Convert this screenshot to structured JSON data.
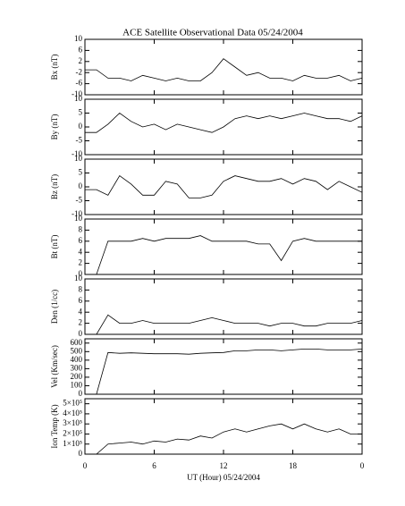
{
  "chart_data": [
    {
      "type": "line",
      "title": "ACE Satellite Observational Data   05/24/2004",
      "ylabel": "Bx (nT)",
      "ylim": [
        -10,
        10
      ],
      "yticks": [
        -10,
        -6,
        -2,
        2,
        6,
        10
      ],
      "color": "#000000",
      "values": [
        -1,
        -1,
        -4,
        -4,
        -5,
        -3,
        -4,
        -5,
        -4,
        -5,
        -5,
        -2,
        3,
        0,
        -3,
        -2,
        -4,
        -4,
        -5,
        -3,
        -4,
        -4,
        -3,
        -5,
        -4
      ]
    },
    {
      "type": "line",
      "ylabel": "By (nT)",
      "ylim": [
        -10,
        10
      ],
      "yticks": [
        -10,
        -5,
        0,
        5,
        10
      ],
      "color": "#000000",
      "values": [
        -2,
        -2,
        1,
        5,
        2,
        0,
        1,
        -1,
        1,
        0,
        -1,
        -2,
        0,
        3,
        4,
        3,
        4,
        3,
        4,
        5,
        4,
        3,
        3,
        2,
        4
      ]
    },
    {
      "type": "line",
      "ylabel": "Bz (nT)",
      "ylim": [
        -10,
        10
      ],
      "yticks": [
        -10,
        -5,
        0,
        5,
        10
      ],
      "color": "#000000",
      "values": [
        -1,
        -1,
        -3,
        4,
        1,
        -3,
        -3,
        2,
        1,
        -4,
        -4,
        -3,
        2,
        4,
        3,
        2,
        2,
        3,
        1,
        3,
        2,
        -1,
        2,
        0,
        -2
      ]
    },
    {
      "type": "line",
      "ylabel": "Bt (nT)",
      "ylim": [
        0,
        10
      ],
      "yticks": [
        0,
        2,
        4,
        6,
        8,
        10
      ],
      "color": "#000000",
      "values": [
        0,
        0,
        6,
        6,
        6,
        6.5,
        6,
        6.5,
        6.5,
        6.5,
        7,
        6,
        6,
        6,
        6,
        5.5,
        5.5,
        2.5,
        6,
        6.5,
        6,
        6,
        6,
        6,
        6
      ]
    },
    {
      "type": "line",
      "ylabel": "Den (1/cc)",
      "ylim": [
        0,
        10
      ],
      "yticks": [
        0,
        2,
        4,
        6,
        8,
        10
      ],
      "color": "#000000",
      "values": [
        0,
        0,
        3.5,
        2,
        2,
        2.5,
        2,
        2,
        2,
        2,
        2.5,
        3,
        2.5,
        2,
        2,
        2,
        1.5,
        2,
        2,
        1.5,
        1.5,
        2,
        2,
        2,
        2.5
      ]
    },
    {
      "type": "line",
      "ylabel": "Vel (Km/sec)",
      "ylim": [
        0,
        650
      ],
      "yticks": [
        0,
        100,
        200,
        300,
        400,
        500,
        600
      ],
      "color": "#000000",
      "values": [
        0,
        0,
        490,
        480,
        485,
        480,
        475,
        475,
        475,
        470,
        480,
        485,
        490,
        510,
        510,
        520,
        520,
        510,
        520,
        530,
        530,
        520,
        520,
        520,
        530
      ]
    },
    {
      "type": "line",
      "ylabel": "Ion Temp (K)",
      "xlabel": "UT (Hour)   05/24/2004",
      "ylim": [
        0,
        550000
      ],
      "yticks": [
        0,
        {
          "value": 100000,
          "label": "1×10⁵"
        },
        {
          "value": 200000,
          "label": "2×10⁵"
        },
        {
          "value": 300000,
          "label": "3×10⁵"
        },
        {
          "value": 400000,
          "label": "4×10⁵"
        },
        {
          "value": 500000,
          "label": "5×10⁵"
        }
      ],
      "xlim": [
        0,
        24
      ],
      "xticks": [
        0,
        6,
        12,
        18,
        {
          "value": 24,
          "label": "0"
        }
      ],
      "color": "#000000",
      "x": [
        0,
        1,
        2,
        3,
        4,
        5,
        6,
        7,
        8,
        9,
        10,
        11,
        12,
        13,
        14,
        15,
        16,
        17,
        18,
        19,
        20,
        21,
        22,
        23,
        24
      ],
      "values": [
        0,
        0,
        100000,
        110000,
        120000,
        100000,
        130000,
        120000,
        150000,
        140000,
        180000,
        160000,
        220000,
        250000,
        220000,
        250000,
        280000,
        300000,
        250000,
        300000,
        250000,
        220000,
        250000,
        200000,
        200000
      ]
    }
  ]
}
